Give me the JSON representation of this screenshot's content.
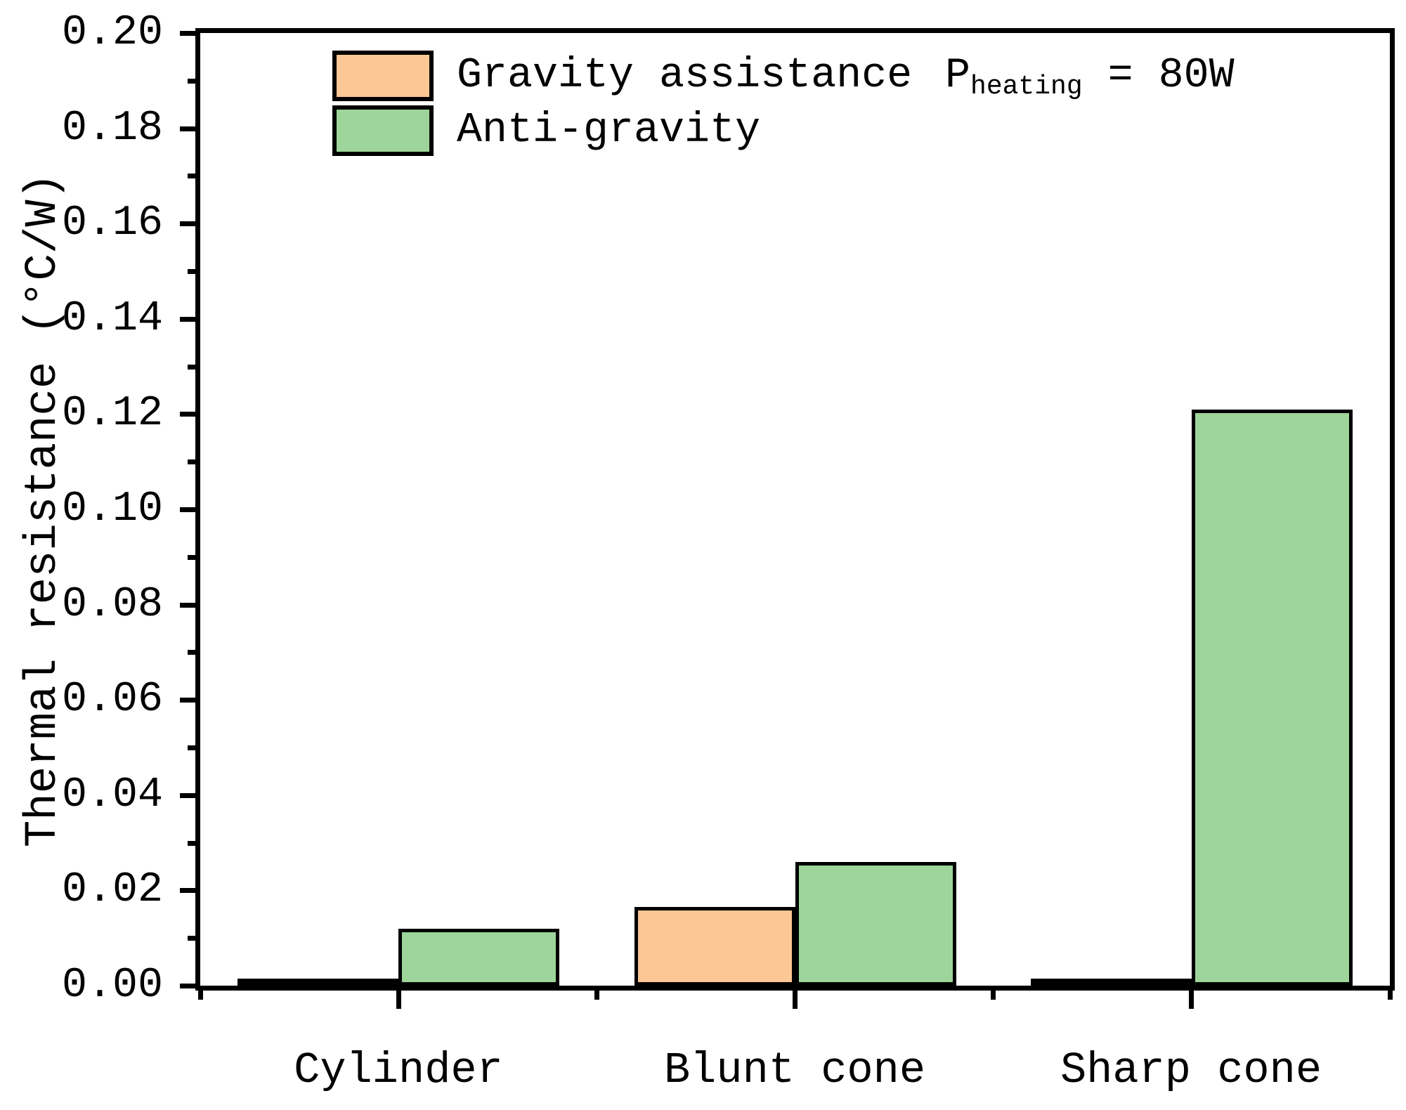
{
  "chart_data": {
    "type": "bar",
    "title": "",
    "categories": [
      "Cylinder",
      "Blunt cone",
      "Sharp cone"
    ],
    "series": [
      {
        "name": "Gravity assistance",
        "color": "#FCC795",
        "values": [
          0.001,
          0.0165,
          0.001
        ]
      },
      {
        "name": "Anti-gravity",
        "color": "#9DD59A",
        "values": [
          0.012,
          0.026,
          0.121
        ]
      }
    ],
    "xlabel": "",
    "ylabel": "Thermal resistance (°C/W)",
    "ylim": [
      0,
      0.2
    ],
    "ytick_step": 0.02,
    "yminor_step": 0.01,
    "ytick_decimals": 2,
    "ytick_labels": [
      "0.00",
      "0.02",
      "0.04",
      "0.06",
      "0.08",
      "0.10",
      "0.12",
      "0.14",
      "0.16",
      "0.18",
      "0.20"
    ],
    "grid": false,
    "legend_position": "top-left",
    "annotation": {
      "prefix": "P",
      "subscript": "heating",
      "suffix": " = 80W"
    },
    "colors": {
      "axis": "#000000",
      "bar_outline": "#000000",
      "background": "#ffffff"
    }
  }
}
